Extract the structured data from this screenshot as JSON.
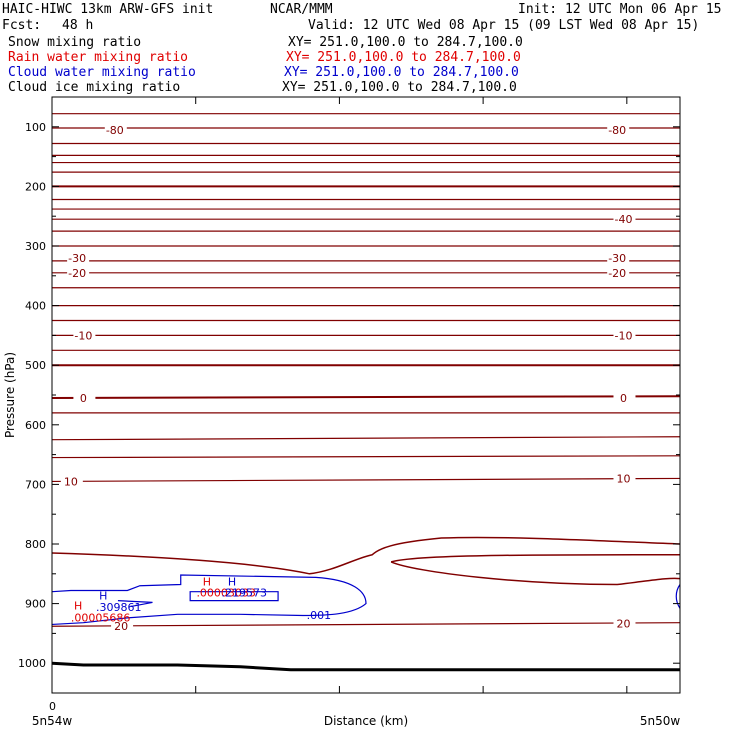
{
  "header": {
    "title_line": "HAIC-HIWC 13km ARW-GFS init",
    "org": "NCAR/MMM",
    "init": "Init: 12 UTC Mon 06 Apr 15",
    "fcst_label": "Fcst:",
    "fcst_value": "48 h",
    "valid": "Valid: 12 UTC Wed 08 Apr 15 (09 LST Wed 08 Apr 15)",
    "fields": [
      {
        "name": "Snow mixing ratio",
        "xy": "XY= 251.0,100.0 to 284.7,100.0",
        "color": "#000000"
      },
      {
        "name": "Rain water mixing ratio",
        "xy": "XY= 251.0,100.0 to 284.7,100.0",
        "color": "#e00000"
      },
      {
        "name": "Cloud water mixing ratio",
        "xy": "XY= 251.0,100.0 to 284.7,100.0",
        "color": "#0000cc"
      },
      {
        "name": "Cloud ice mixing ratio",
        "xy": "XY= 251.0,100.0 to 284.7,100.0",
        "color": "#000000"
      }
    ]
  },
  "chart_data": {
    "type": "line",
    "xlabel": "Distance (km)",
    "ylabel": "Pressure (hPa)",
    "x_start_value": "0",
    "x_left_label": "5n54w",
    "x_right_label": "5n50w",
    "y_ticks": [
      100,
      200,
      300,
      400,
      500,
      600,
      700,
      800,
      900,
      1000
    ],
    "ylim": [
      1050,
      50
    ],
    "grid": false,
    "isotherm_color": "#800000",
    "isotherm_labels": [
      {
        "text": "-80",
        "x": 0.1,
        "p": 105
      },
      {
        "text": "-80",
        "x": 0.9,
        "p": 105
      },
      {
        "text": "-40",
        "x": 0.91,
        "p": 255
      },
      {
        "text": "-30",
        "x": 0.04,
        "p": 320
      },
      {
        "text": "-30",
        "x": 0.9,
        "p": 320
      },
      {
        "text": "-20",
        "x": 0.04,
        "p": 345
      },
      {
        "text": "-20",
        "x": 0.9,
        "p": 345
      },
      {
        "text": "-10",
        "x": 0.05,
        "p": 450
      },
      {
        "text": "-10",
        "x": 0.91,
        "p": 450
      },
      {
        "text": "0",
        "x": 0.05,
        "p": 555
      },
      {
        "text": "0",
        "x": 0.91,
        "p": 555
      },
      {
        "text": "10",
        "x": 0.03,
        "p": 695
      },
      {
        "text": "10",
        "x": 0.91,
        "p": 690
      },
      {
        "text": "20",
        "x": 0.11,
        "p": 938
      },
      {
        "text": "20",
        "x": 0.91,
        "p": 933
      }
    ],
    "cloud_water_label": ".001",
    "annotations": [
      {
        "text": "H",
        "color": "#e00000",
        "x": 0.035,
        "p": 910
      },
      {
        "text": ".00005686",
        "color": "#e00000",
        "x": 0.03,
        "p": 930
      },
      {
        "text": "H",
        "color": "#0000cc",
        "x": 0.075,
        "p": 893
      },
      {
        "text": ".309861",
        "color": "#0000cc",
        "x": 0.07,
        "p": 912
      },
      {
        "text": "H",
        "color": "#e00000",
        "x": 0.24,
        "p": 870
      },
      {
        "text": "H",
        "color": "#0000cc",
        "x": 0.28,
        "p": 870
      },
      {
        "text": ".00003033",
        "color": "#e00000",
        "x": 0.23,
        "p": 888
      },
      {
        "text": ".219573",
        "color": "#0000cc",
        "x": 0.27,
        "p": 888
      }
    ]
  }
}
